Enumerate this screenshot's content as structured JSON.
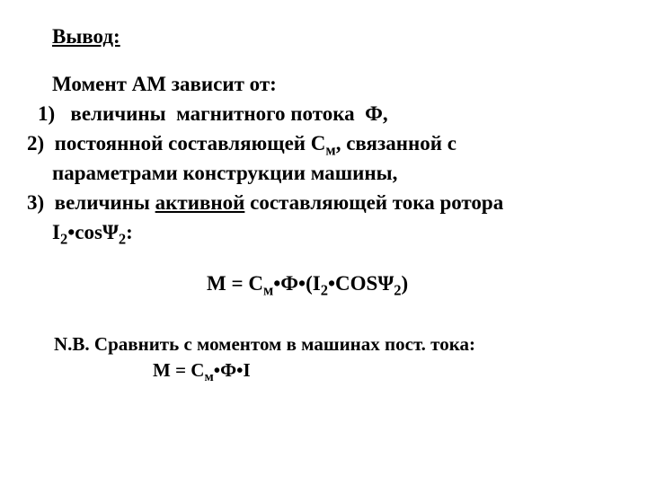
{
  "title": "Вывод:",
  "intro": "Момент АМ зависит от:",
  "item1": "1)   величины  магнитного потока  Ф,",
  "item2_a": "2)  постоянной составляющей С",
  "item2_sub": "м",
  "item2_b": ", связанной с",
  "item2_cont": "параметрами конструкции машины,",
  "item3_a": "3)  величины ",
  "item3_under": "активной",
  "item3_b": " составляющей тока ротора",
  "item3c_a": "I",
  "item3c_s1": "2",
  "item3c_b": "•cosΨ",
  "item3c_s2": "2",
  "item3c_c": ":",
  "formula_a": "М = С",
  "formula_s1": "м",
  "formula_b": "•Ф•(I",
  "formula_s2": "2",
  "formula_c": "•COSΨ",
  "formula_s3": "2",
  "formula_d": ")",
  "nb": "N.B. Сравнить с моментом в машинах пост. тока:",
  "nbf_a": "М = С",
  "nbf_s1": "м",
  "nbf_b": "•Ф•I"
}
